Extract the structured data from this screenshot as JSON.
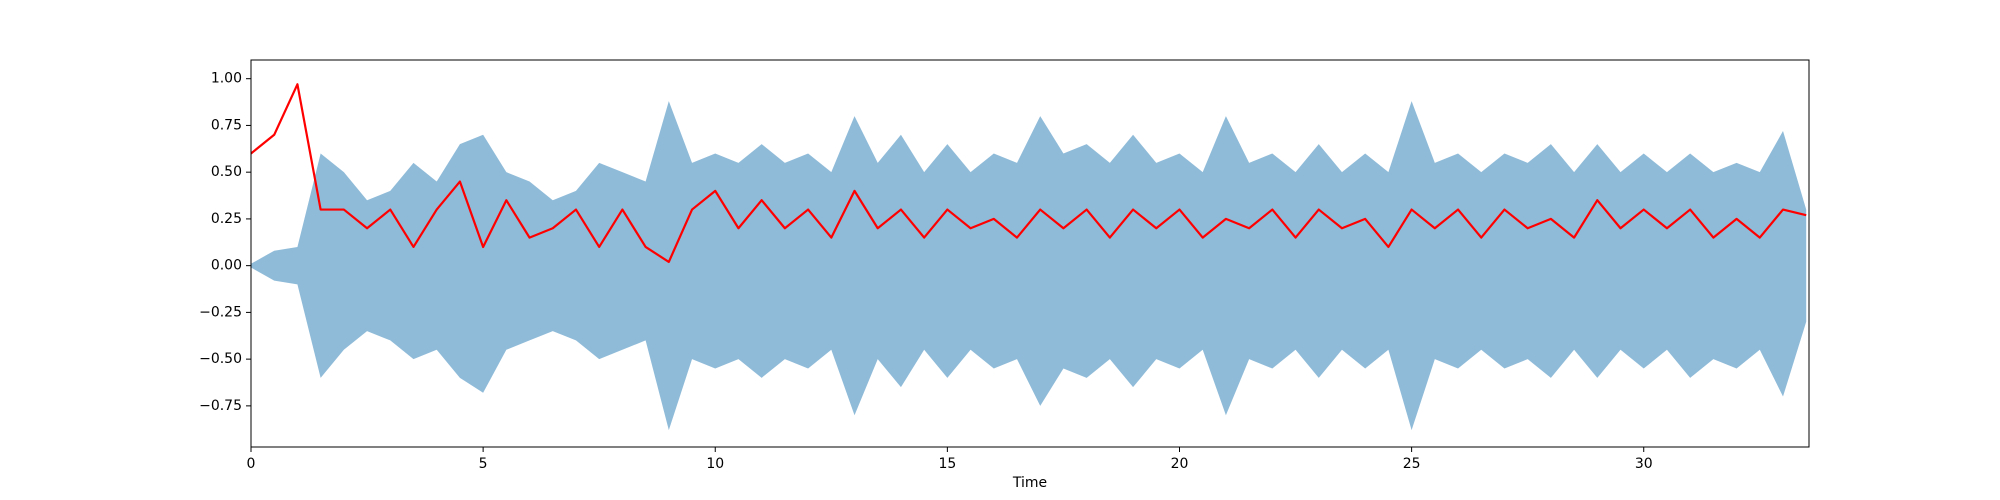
{
  "chart_data": {
    "type": "waveform",
    "xlabel": "Time",
    "x": [
      0,
      0.5,
      1,
      1.5,
      2,
      2.5,
      3,
      3.5,
      4,
      4.5,
      5,
      5.5,
      6,
      6.5,
      7,
      7.5,
      8,
      8.5,
      9,
      9.5,
      10,
      10.5,
      11,
      11.5,
      12,
      12.5,
      13,
      13.5,
      14,
      14.5,
      15,
      15.5,
      16,
      16.5,
      17,
      17.5,
      18,
      18.5,
      19,
      19.5,
      20,
      20.5,
      21,
      21.5,
      22,
      22.5,
      23,
      23.5,
      24,
      24.5,
      25,
      25.5,
      26,
      26.5,
      27,
      27.5,
      28,
      28.5,
      29,
      29.5,
      30,
      30.5,
      31,
      31.5,
      32,
      32.5,
      33,
      33.5
    ],
    "series": [
      {
        "kind": "area",
        "color": "#1f77b4",
        "opacity": 0.5,
        "values": [
          0.01,
          0.08,
          0.1,
          0.6,
          0.5,
          0.35,
          0.4,
          0.55,
          0.45,
          0.65,
          0.7,
          0.5,
          0.45,
          0.35,
          0.4,
          0.55,
          0.5,
          0.45,
          0.88,
          0.55,
          0.6,
          0.55,
          0.65,
          0.55,
          0.6,
          0.5,
          0.8,
          0.55,
          0.7,
          0.5,
          0.65,
          0.5,
          0.6,
          0.55,
          0.8,
          0.6,
          0.65,
          0.55,
          0.7,
          0.55,
          0.6,
          0.5,
          0.8,
          0.55,
          0.6,
          0.5,
          0.65,
          0.5,
          0.6,
          0.5,
          0.88,
          0.55,
          0.6,
          0.5,
          0.6,
          0.55,
          0.65,
          0.5,
          0.65,
          0.5,
          0.6,
          0.5,
          0.6,
          0.5,
          0.55,
          0.5,
          0.72,
          0.3
        ],
        "lower": [
          -0.01,
          -0.08,
          -0.1,
          -0.6,
          -0.45,
          -0.35,
          -0.4,
          -0.5,
          -0.45,
          -0.6,
          -0.68,
          -0.45,
          -0.4,
          -0.35,
          -0.4,
          -0.5,
          -0.45,
          -0.4,
          -0.88,
          -0.5,
          -0.55,
          -0.5,
          -0.6,
          -0.5,
          -0.55,
          -0.45,
          -0.8,
          -0.5,
          -0.65,
          -0.45,
          -0.6,
          -0.45,
          -0.55,
          -0.5,
          -0.75,
          -0.55,
          -0.6,
          -0.5,
          -0.65,
          -0.5,
          -0.55,
          -0.45,
          -0.8,
          -0.5,
          -0.55,
          -0.45,
          -0.6,
          -0.45,
          -0.55,
          -0.45,
          -0.88,
          -0.5,
          -0.55,
          -0.45,
          -0.55,
          -0.5,
          -0.6,
          -0.45,
          -0.6,
          -0.45,
          -0.55,
          -0.45,
          -0.6,
          -0.5,
          -0.55,
          -0.45,
          -0.7,
          -0.3
        ]
      },
      {
        "kind": "line",
        "color": "#ff0000",
        "values": [
          0.6,
          0.7,
          0.97,
          0.3,
          0.3,
          0.2,
          0.3,
          0.1,
          0.3,
          0.45,
          0.1,
          0.35,
          0.15,
          0.2,
          0.3,
          0.1,
          0.3,
          0.1,
          0.02,
          0.3,
          0.4,
          0.2,
          0.35,
          0.2,
          0.3,
          0.15,
          0.4,
          0.2,
          0.3,
          0.15,
          0.3,
          0.2,
          0.25,
          0.15,
          0.3,
          0.2,
          0.3,
          0.15,
          0.3,
          0.2,
          0.3,
          0.15,
          0.25,
          0.2,
          0.3,
          0.15,
          0.3,
          0.2,
          0.25,
          0.1,
          0.3,
          0.2,
          0.3,
          0.15,
          0.3,
          0.2,
          0.25,
          0.15,
          0.35,
          0.2,
          0.3,
          0.2,
          0.3,
          0.15,
          0.25,
          0.15,
          0.3,
          0.27
        ]
      }
    ],
    "xlim": [
      0,
      33.56
    ],
    "ylim": [
      -0.97,
      1.1
    ],
    "xticks": [
      0,
      5,
      10,
      15,
      20,
      25,
      30
    ],
    "yticks": [
      {
        "value": -0.75,
        "label": "−0.75"
      },
      {
        "value": -0.5,
        "label": "−0.50"
      },
      {
        "value": -0.25,
        "label": "−0.25"
      },
      {
        "value": 0,
        "label": "0.00"
      },
      {
        "value": 0.25,
        "label": "0.25"
      },
      {
        "value": 0.5,
        "label": "0.50"
      },
      {
        "value": 0.75,
        "label": "0.75"
      },
      {
        "value": 1,
        "label": "1.00"
      }
    ]
  }
}
